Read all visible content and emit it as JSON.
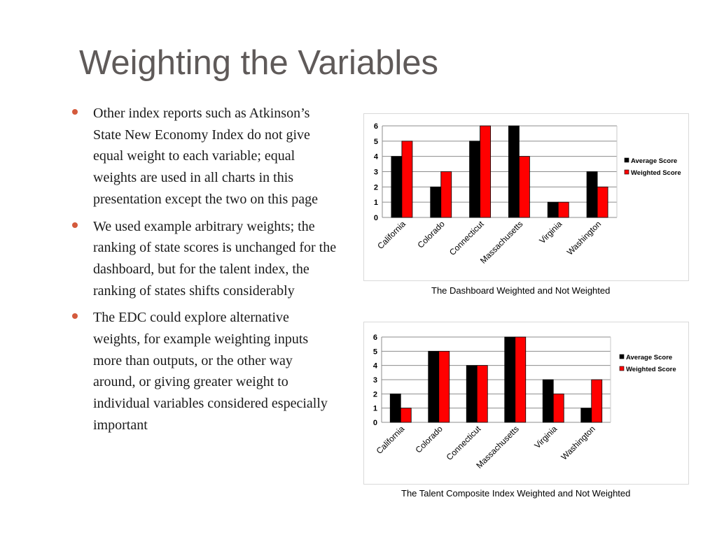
{
  "slide": {
    "title": "Weighting the Variables",
    "bullets": [
      "Other index reports such as Atkinson’s State New Economy Index do not give equal weight to each variable; equal weights are used in all charts in this presentation except the two on this page",
      "We used example arbitrary weights; the ranking of state scores is unchanged for the dashboard, but for the talent index, the ranking of states shifts considerably",
      "The EDC could explore alternative weights, for example weighting inputs more than outputs, or the other way around, or giving greater weight to individual variables considered especially important"
    ]
  },
  "colors": {
    "title": "#5f5a59",
    "bullet": "#d45a3c",
    "average": "#000000",
    "weighted": "#ff0000"
  },
  "chart_data": [
    {
      "type": "bar",
      "caption": "The Dashboard Weighted and Not Weighted",
      "categories": [
        "California",
        "Colorado",
        "Connecticut",
        "Massachusetts",
        "Virginia",
        "Washington"
      ],
      "series": [
        {
          "name": "Average Score",
          "values": [
            4,
            2,
            5,
            6,
            1,
            3
          ]
        },
        {
          "name": "Weighted Score",
          "values": [
            5,
            3,
            6,
            4,
            1,
            2
          ]
        }
      ],
      "ylim": [
        0,
        6
      ],
      "yticks": [
        0,
        1,
        2,
        3,
        4,
        5,
        6
      ],
      "grid": true,
      "legend": "right"
    },
    {
      "type": "bar",
      "caption": "The Talent Composite Index  Weighted and Not Weighted",
      "categories": [
        "California",
        "Colorado",
        "Connecticut",
        "Massachusetts",
        "Virginia",
        "Washington"
      ],
      "series": [
        {
          "name": "Average Score",
          "values": [
            2,
            5,
            4,
            6,
            3,
            1
          ]
        },
        {
          "name": "Weighted Score",
          "values": [
            1,
            5,
            4,
            6,
            2,
            3
          ]
        }
      ],
      "ylim": [
        0,
        6
      ],
      "yticks": [
        0,
        1,
        2,
        3,
        4,
        5,
        6
      ],
      "grid": true,
      "legend": "right"
    }
  ]
}
